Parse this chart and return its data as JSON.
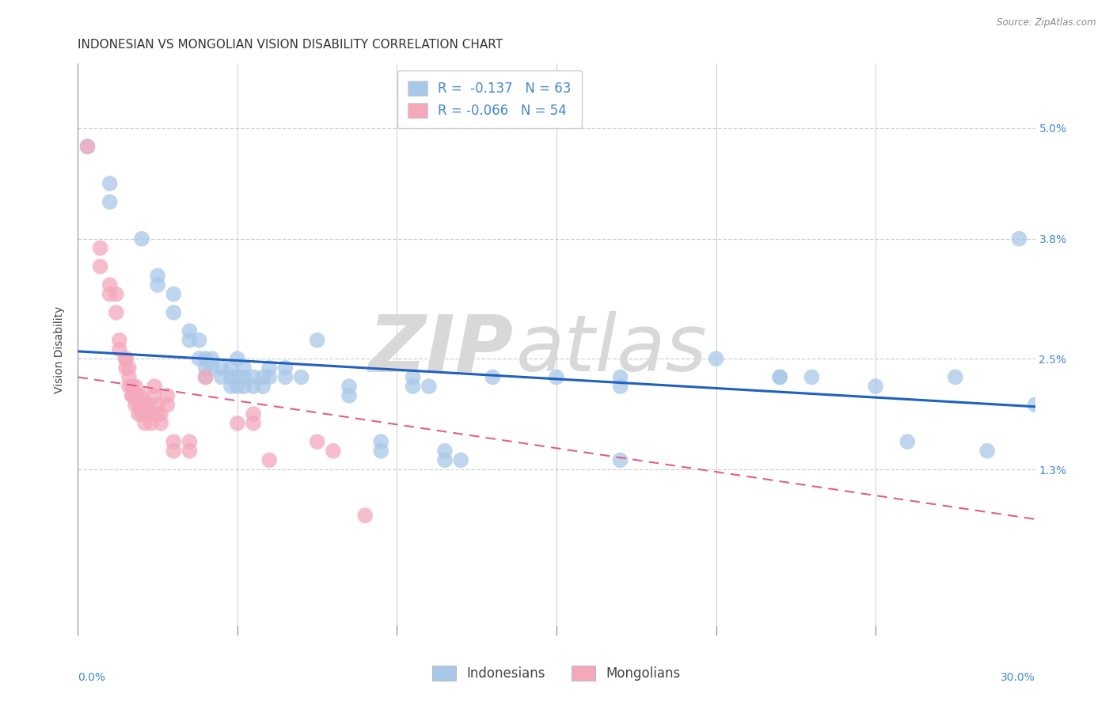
{
  "title": "INDONESIAN VS MONGOLIAN VISION DISABILITY CORRELATION CHART",
  "source": "Source: ZipAtlas.com",
  "ylabel": "Vision Disability",
  "ytick_labels": [
    "1.3%",
    "2.5%",
    "3.8%",
    "5.0%"
  ],
  "ytick_values": [
    0.013,
    0.025,
    0.038,
    0.05
  ],
  "xlim": [
    0.0,
    0.3
  ],
  "ylim": [
    -0.005,
    0.057
  ],
  "legend_blue_r": "-0.137",
  "legend_blue_n": "63",
  "legend_pink_r": "-0.066",
  "legend_pink_n": "54",
  "blue_color": "#a8c8e8",
  "pink_color": "#f4a8bc",
  "blue_line_color": "#2060c0",
  "pink_line_color": "#e06080",
  "blue_points": [
    [
      0.003,
      0.048
    ],
    [
      0.01,
      0.044
    ],
    [
      0.01,
      0.042
    ],
    [
      0.02,
      0.038
    ],
    [
      0.025,
      0.034
    ],
    [
      0.025,
      0.033
    ],
    [
      0.03,
      0.032
    ],
    [
      0.03,
      0.03
    ],
    [
      0.035,
      0.028
    ],
    [
      0.035,
      0.027
    ],
    [
      0.038,
      0.027
    ],
    [
      0.038,
      0.025
    ],
    [
      0.04,
      0.025
    ],
    [
      0.04,
      0.024
    ],
    [
      0.04,
      0.023
    ],
    [
      0.042,
      0.025
    ],
    [
      0.042,
      0.024
    ],
    [
      0.045,
      0.024
    ],
    [
      0.045,
      0.023
    ],
    [
      0.048,
      0.024
    ],
    [
      0.048,
      0.023
    ],
    [
      0.048,
      0.022
    ],
    [
      0.05,
      0.025
    ],
    [
      0.05,
      0.023
    ],
    [
      0.05,
      0.022
    ],
    [
      0.052,
      0.024
    ],
    [
      0.052,
      0.023
    ],
    [
      0.052,
      0.022
    ],
    [
      0.055,
      0.023
    ],
    [
      0.055,
      0.022
    ],
    [
      0.058,
      0.023
    ],
    [
      0.058,
      0.022
    ],
    [
      0.06,
      0.024
    ],
    [
      0.06,
      0.023
    ],
    [
      0.065,
      0.024
    ],
    [
      0.065,
      0.023
    ],
    [
      0.07,
      0.023
    ],
    [
      0.075,
      0.027
    ],
    [
      0.085,
      0.022
    ],
    [
      0.085,
      0.021
    ],
    [
      0.095,
      0.016
    ],
    [
      0.095,
      0.015
    ],
    [
      0.105,
      0.023
    ],
    [
      0.105,
      0.022
    ],
    [
      0.11,
      0.022
    ],
    [
      0.115,
      0.015
    ],
    [
      0.115,
      0.014
    ],
    [
      0.13,
      0.023
    ],
    [
      0.15,
      0.023
    ],
    [
      0.17,
      0.023
    ],
    [
      0.17,
      0.022
    ],
    [
      0.2,
      0.025
    ],
    [
      0.22,
      0.023
    ],
    [
      0.22,
      0.023
    ],
    [
      0.23,
      0.023
    ],
    [
      0.25,
      0.022
    ],
    [
      0.26,
      0.016
    ],
    [
      0.275,
      0.023
    ],
    [
      0.285,
      0.015
    ],
    [
      0.295,
      0.038
    ],
    [
      0.3,
      0.02
    ],
    [
      0.17,
      0.014
    ],
    [
      0.12,
      0.014
    ]
  ],
  "pink_points": [
    [
      0.003,
      0.048
    ],
    [
      0.007,
      0.037
    ],
    [
      0.007,
      0.035
    ],
    [
      0.01,
      0.033
    ],
    [
      0.01,
      0.032
    ],
    [
      0.012,
      0.032
    ],
    [
      0.012,
      0.03
    ],
    [
      0.013,
      0.027
    ],
    [
      0.013,
      0.026
    ],
    [
      0.015,
      0.025
    ],
    [
      0.015,
      0.025
    ],
    [
      0.015,
      0.024
    ],
    [
      0.016,
      0.024
    ],
    [
      0.016,
      0.023
    ],
    [
      0.016,
      0.022
    ],
    [
      0.017,
      0.022
    ],
    [
      0.017,
      0.021
    ],
    [
      0.017,
      0.021
    ],
    [
      0.018,
      0.022
    ],
    [
      0.018,
      0.021
    ],
    [
      0.018,
      0.02
    ],
    [
      0.019,
      0.021
    ],
    [
      0.019,
      0.02
    ],
    [
      0.019,
      0.019
    ],
    [
      0.02,
      0.021
    ],
    [
      0.02,
      0.02
    ],
    [
      0.02,
      0.019
    ],
    [
      0.021,
      0.02
    ],
    [
      0.021,
      0.019
    ],
    [
      0.021,
      0.018
    ],
    [
      0.022,
      0.02
    ],
    [
      0.022,
      0.019
    ],
    [
      0.023,
      0.019
    ],
    [
      0.023,
      0.018
    ],
    [
      0.024,
      0.022
    ],
    [
      0.024,
      0.021
    ],
    [
      0.025,
      0.02
    ],
    [
      0.025,
      0.019
    ],
    [
      0.026,
      0.019
    ],
    [
      0.026,
      0.018
    ],
    [
      0.028,
      0.021
    ],
    [
      0.028,
      0.02
    ],
    [
      0.03,
      0.016
    ],
    [
      0.03,
      0.015
    ],
    [
      0.035,
      0.016
    ],
    [
      0.035,
      0.015
    ],
    [
      0.04,
      0.023
    ],
    [
      0.05,
      0.018
    ],
    [
      0.055,
      0.019
    ],
    [
      0.055,
      0.018
    ],
    [
      0.06,
      0.014
    ],
    [
      0.075,
      0.016
    ],
    [
      0.08,
      0.015
    ],
    [
      0.09,
      0.008
    ]
  ],
  "blue_trend_x": [
    0.0,
    0.3
  ],
  "blue_trend_y": [
    0.0258,
    0.0198
  ],
  "pink_trend_x": [
    0.0,
    0.3
  ],
  "pink_trend_y": [
    0.023,
    0.0076
  ],
  "watermark_zip": "ZIP",
  "watermark_atlas": "atlas",
  "background_color": "#ffffff",
  "grid_color": "#d0d0d0",
  "title_fontsize": 11,
  "axis_label_fontsize": 10,
  "tick_fontsize": 10,
  "legend_fontsize": 12
}
